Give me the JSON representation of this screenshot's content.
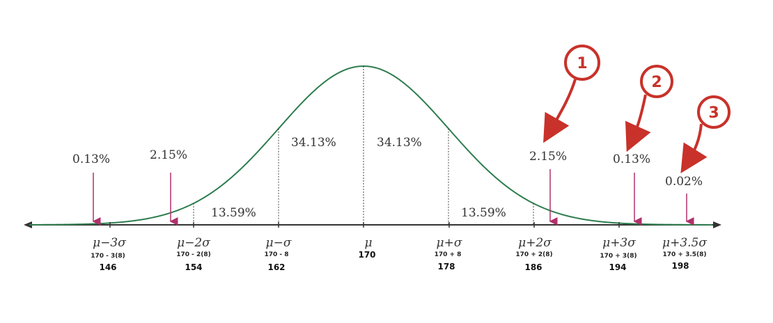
{
  "colors": {
    "curve": "#2e7d4f",
    "axis": "#333333",
    "pink_arrow": "#b0306a",
    "badge": "#c8322a",
    "dotted": "#444444"
  },
  "diagram": {
    "ticks": [
      {
        "symbol": "μ−3σ",
        "formula": "170 - 3(8)",
        "value": "146"
      },
      {
        "symbol": "μ−2σ",
        "formula": "170 - 2(8)",
        "value": "154"
      },
      {
        "symbol": "μ−σ",
        "formula": "170 - 8",
        "value": "162"
      },
      {
        "symbol": "μ",
        "formula": "",
        "value": "170"
      },
      {
        "symbol": "μ+σ",
        "formula": "170 + 8",
        "value": "178"
      },
      {
        "symbol": "μ+2σ",
        "formula": "170 + 2(8)",
        "value": "186"
      },
      {
        "symbol": "μ+3σ",
        "formula": "170 + 3(8)",
        "value": "194"
      },
      {
        "symbol": "μ+3.5σ",
        "formula": "170 + 3.5(8)",
        "value": "198"
      }
    ],
    "region_labels": [
      "13.59%",
      "34.13%",
      "34.13%",
      "13.59%"
    ],
    "arrow_labels": [
      "0.13%",
      "2.15%",
      "2.15%",
      "0.13%",
      "0.02%"
    ],
    "badges": [
      "1",
      "2",
      "3"
    ]
  }
}
